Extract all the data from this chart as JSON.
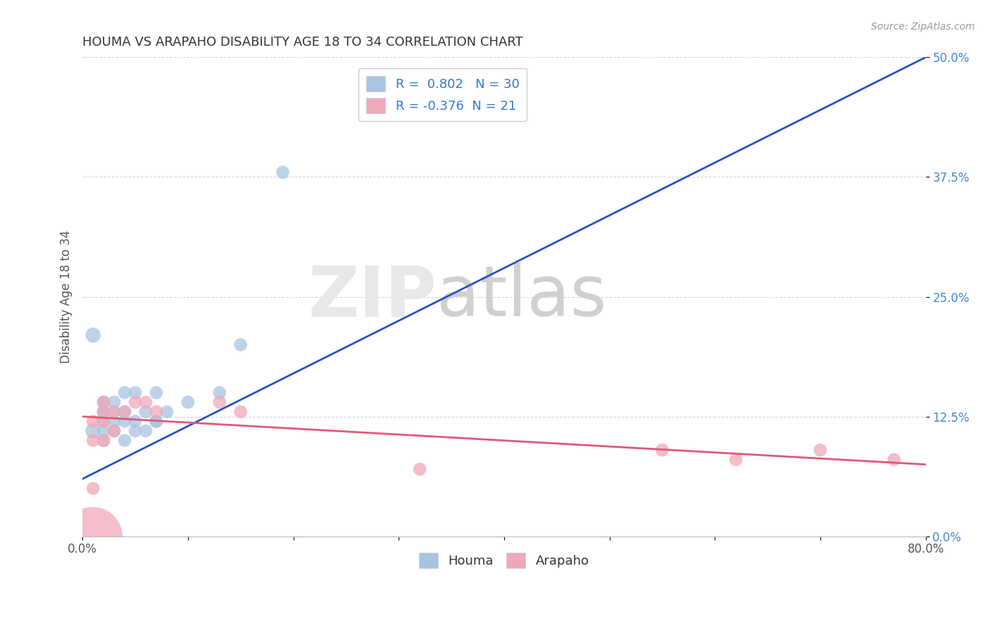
{
  "title": "HOUMA VS ARAPAHO DISABILITY AGE 18 TO 34 CORRELATION CHART",
  "source": "Source: ZipAtlas.com",
  "ylabel": "Disability Age 18 to 34",
  "xlim": [
    0.0,
    0.8
  ],
  "ylim": [
    0.0,
    0.5
  ],
  "yticks": [
    0.0,
    0.125,
    0.25,
    0.375,
    0.5
  ],
  "ytick_labels": [
    "0.0%",
    "12.5%",
    "25.0%",
    "37.5%",
    "50.0%"
  ],
  "houma_R": 0.802,
  "houma_N": 30,
  "arapaho_R": -0.376,
  "arapaho_N": 21,
  "houma_color": "#a8c4e0",
  "arapaho_color": "#f0a8b8",
  "houma_line_color": "#2255bb",
  "arapaho_line_color": "#e05878",
  "legend_text_color": "#3377cc",
  "ytick_color": "#4488cc",
  "houma_x": [
    0.01,
    0.01,
    0.02,
    0.02,
    0.02,
    0.02,
    0.02,
    0.02,
    0.02,
    0.03,
    0.03,
    0.03,
    0.03,
    0.04,
    0.04,
    0.04,
    0.04,
    0.05,
    0.05,
    0.05,
    0.06,
    0.06,
    0.07,
    0.07,
    0.07,
    0.08,
    0.1,
    0.13,
    0.15,
    0.19
  ],
  "houma_y": [
    0.11,
    0.21,
    0.1,
    0.11,
    0.12,
    0.13,
    0.13,
    0.14,
    0.14,
    0.11,
    0.12,
    0.13,
    0.14,
    0.1,
    0.12,
    0.13,
    0.15,
    0.11,
    0.12,
    0.15,
    0.11,
    0.13,
    0.12,
    0.12,
    0.15,
    0.13,
    0.14,
    0.15,
    0.2,
    0.38
  ],
  "houma_sizes": [
    80,
    80,
    60,
    60,
    60,
    60,
    60,
    60,
    60,
    60,
    60,
    60,
    60,
    60,
    60,
    60,
    60,
    60,
    60,
    60,
    60,
    60,
    60,
    60,
    60,
    60,
    60,
    60,
    60,
    60
  ],
  "arapaho_x": [
    0.01,
    0.01,
    0.01,
    0.01,
    0.02,
    0.02,
    0.02,
    0.02,
    0.03,
    0.03,
    0.04,
    0.05,
    0.06,
    0.07,
    0.13,
    0.15,
    0.32,
    0.55,
    0.62,
    0.7,
    0.77
  ],
  "arapaho_y": [
    0.0,
    0.05,
    0.1,
    0.12,
    0.1,
    0.12,
    0.13,
    0.14,
    0.11,
    0.13,
    0.13,
    0.14,
    0.14,
    0.13,
    0.14,
    0.13,
    0.07,
    0.09,
    0.08,
    0.09,
    0.08
  ],
  "arapaho_sizes": [
    1200,
    60,
    60,
    60,
    60,
    60,
    60,
    60,
    60,
    60,
    60,
    60,
    60,
    60,
    60,
    60,
    60,
    60,
    60,
    60,
    60
  ],
  "houma_line_x0": 0.0,
  "houma_line_y0": 0.06,
  "houma_line_x1": 0.8,
  "houma_line_y1": 0.5,
  "arapaho_line_x0": 0.0,
  "arapaho_line_y0": 0.125,
  "arapaho_line_x1": 0.8,
  "arapaho_line_y1": 0.075
}
